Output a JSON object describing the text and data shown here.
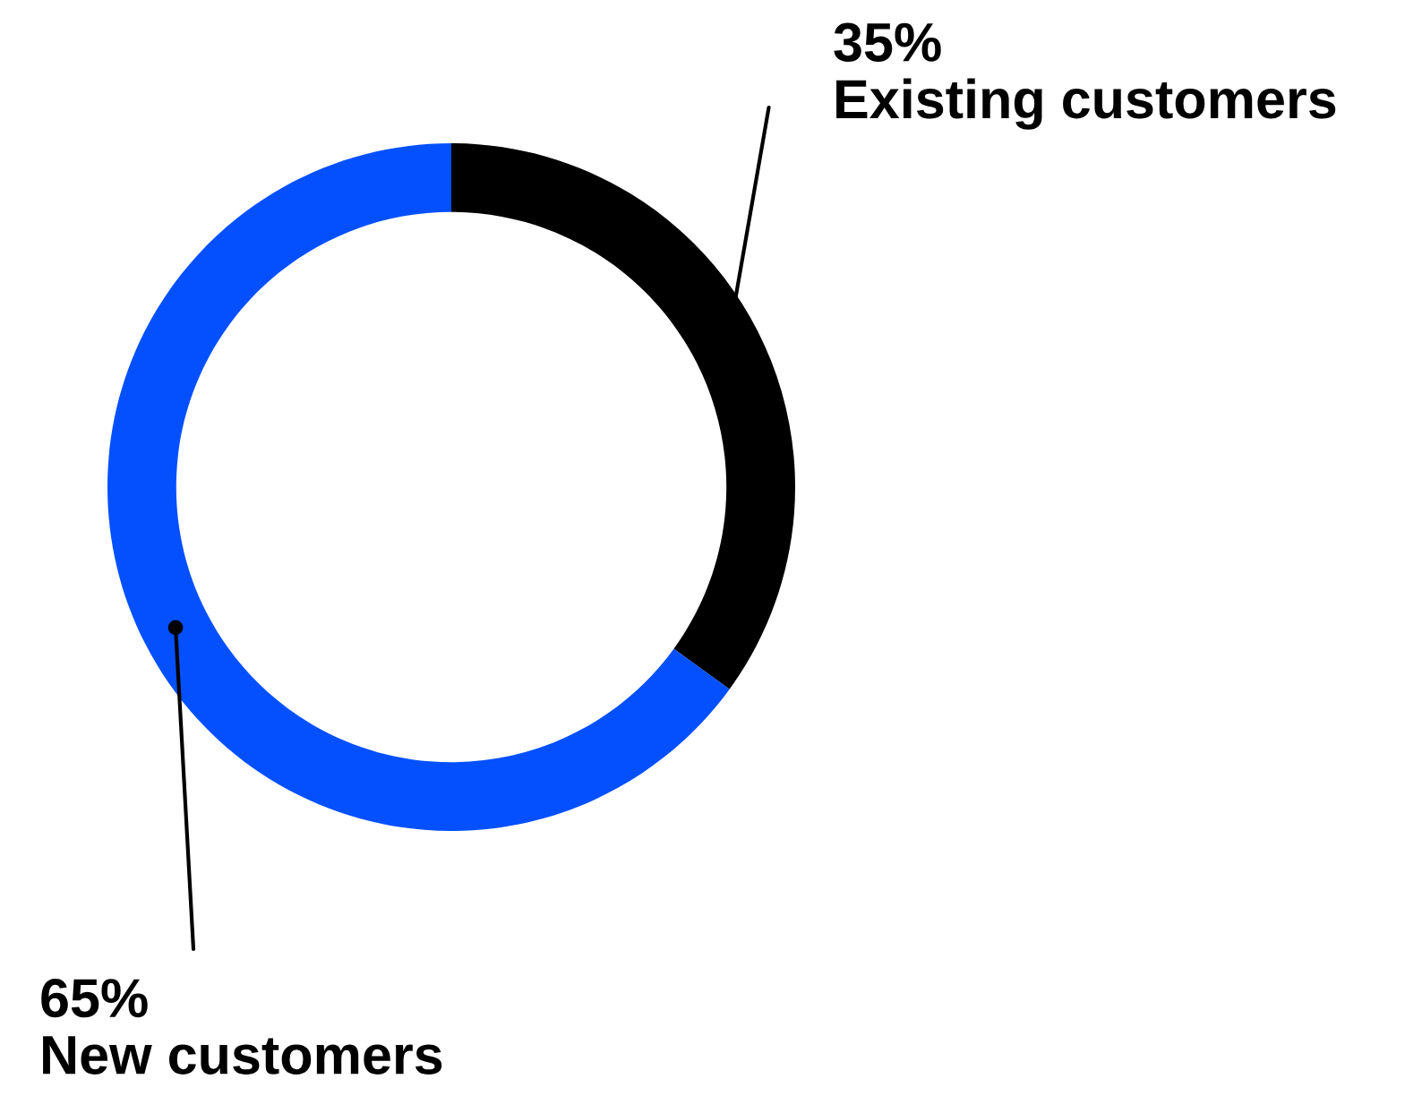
{
  "chart_data": {
    "type": "donut",
    "categories": [
      "Existing customers",
      "New customers"
    ],
    "values": [
      35,
      65
    ],
    "colors": [
      "#000000",
      "#0450ff"
    ],
    "value_labels": [
      "35%",
      "65%"
    ],
    "legend": false
  }
}
